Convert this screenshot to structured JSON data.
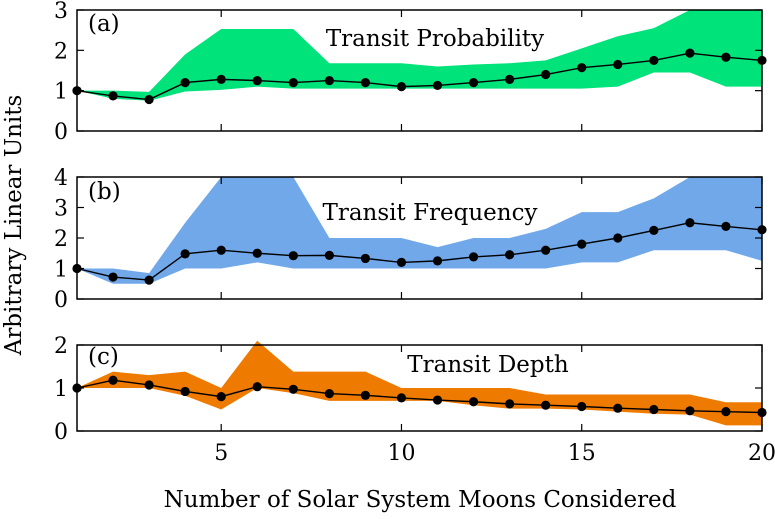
{
  "chart_data": {
    "type": "line",
    "xlabel": "Number of Solar System Moons Considered",
    "ylabel": "Arbitrary Linear Units",
    "x": [
      1,
      2,
      3,
      4,
      5,
      6,
      7,
      8,
      9,
      10,
      11,
      12,
      13,
      14,
      15,
      16,
      17,
      18,
      19,
      20
    ],
    "xticks": [
      5,
      10,
      15,
      20
    ],
    "xlim": [
      1,
      20
    ],
    "panels": [
      {
        "tag": "(a)",
        "title": "Transit Probability",
        "color": "#00e27a",
        "ylim": [
          0,
          3
        ],
        "yticks": [
          0,
          1,
          2,
          3
        ],
        "values": [
          1.0,
          0.87,
          0.78,
          1.2,
          1.28,
          1.25,
          1.2,
          1.25,
          1.2,
          1.1,
          1.13,
          1.2,
          1.28,
          1.4,
          1.57,
          1.65,
          1.75,
          1.93,
          1.83,
          1.75
        ],
        "lower": [
          1.0,
          0.8,
          0.75,
          0.98,
          1.02,
          1.1,
          1.05,
          1.05,
          1.05,
          1.05,
          1.05,
          1.05,
          1.05,
          1.05,
          1.05,
          1.1,
          1.45,
          1.45,
          1.1,
          1.1
        ],
        "upper": [
          1.0,
          1.0,
          0.97,
          1.9,
          2.53,
          2.53,
          2.53,
          1.68,
          1.68,
          1.68,
          1.6,
          1.65,
          1.68,
          1.75,
          2.05,
          2.35,
          2.55,
          3.0,
          3.0,
          3.0
        ]
      },
      {
        "tag": "(b)",
        "title": "Transit Frequency",
        "color": "#70a8ea",
        "ylim": [
          0,
          4
        ],
        "yticks": [
          0,
          1,
          2,
          3,
          4
        ],
        "values": [
          1.0,
          0.72,
          0.62,
          1.48,
          1.6,
          1.5,
          1.42,
          1.43,
          1.33,
          1.2,
          1.25,
          1.38,
          1.45,
          1.6,
          1.8,
          2.0,
          2.25,
          2.5,
          2.38,
          2.27
        ],
        "lower": [
          1.0,
          0.5,
          0.5,
          1.0,
          1.0,
          1.2,
          1.0,
          1.0,
          1.0,
          1.0,
          1.0,
          1.0,
          1.0,
          1.0,
          1.2,
          1.2,
          1.6,
          1.6,
          1.6,
          1.25
        ],
        "upper": [
          1.0,
          1.0,
          0.85,
          2.5,
          4.0,
          4.0,
          4.0,
          2.0,
          2.0,
          2.0,
          1.7,
          2.0,
          2.0,
          2.3,
          2.85,
          2.85,
          3.3,
          4.0,
          4.0,
          4.0
        ]
      },
      {
        "tag": "(c)",
        "title": "Transit Depth",
        "color": "#ef7a00",
        "ylim": [
          0,
          2
        ],
        "yticks": [
          0,
          1,
          2
        ],
        "values": [
          1.0,
          1.18,
          1.07,
          0.92,
          0.8,
          1.03,
          0.97,
          0.87,
          0.83,
          0.77,
          0.72,
          0.68,
          0.63,
          0.6,
          0.57,
          0.53,
          0.5,
          0.47,
          0.45,
          0.43
        ],
        "lower": [
          1.0,
          1.0,
          1.0,
          0.82,
          0.5,
          1.0,
          0.88,
          0.7,
          0.7,
          0.7,
          0.7,
          0.6,
          0.52,
          0.52,
          0.5,
          0.45,
          0.4,
          0.38,
          0.13,
          0.13
        ],
        "upper": [
          1.0,
          1.38,
          1.3,
          1.38,
          1.0,
          2.1,
          1.38,
          1.38,
          1.38,
          1.0,
          1.0,
          1.0,
          1.0,
          0.85,
          0.85,
          0.85,
          0.85,
          0.85,
          0.67,
          0.67
        ]
      }
    ]
  }
}
